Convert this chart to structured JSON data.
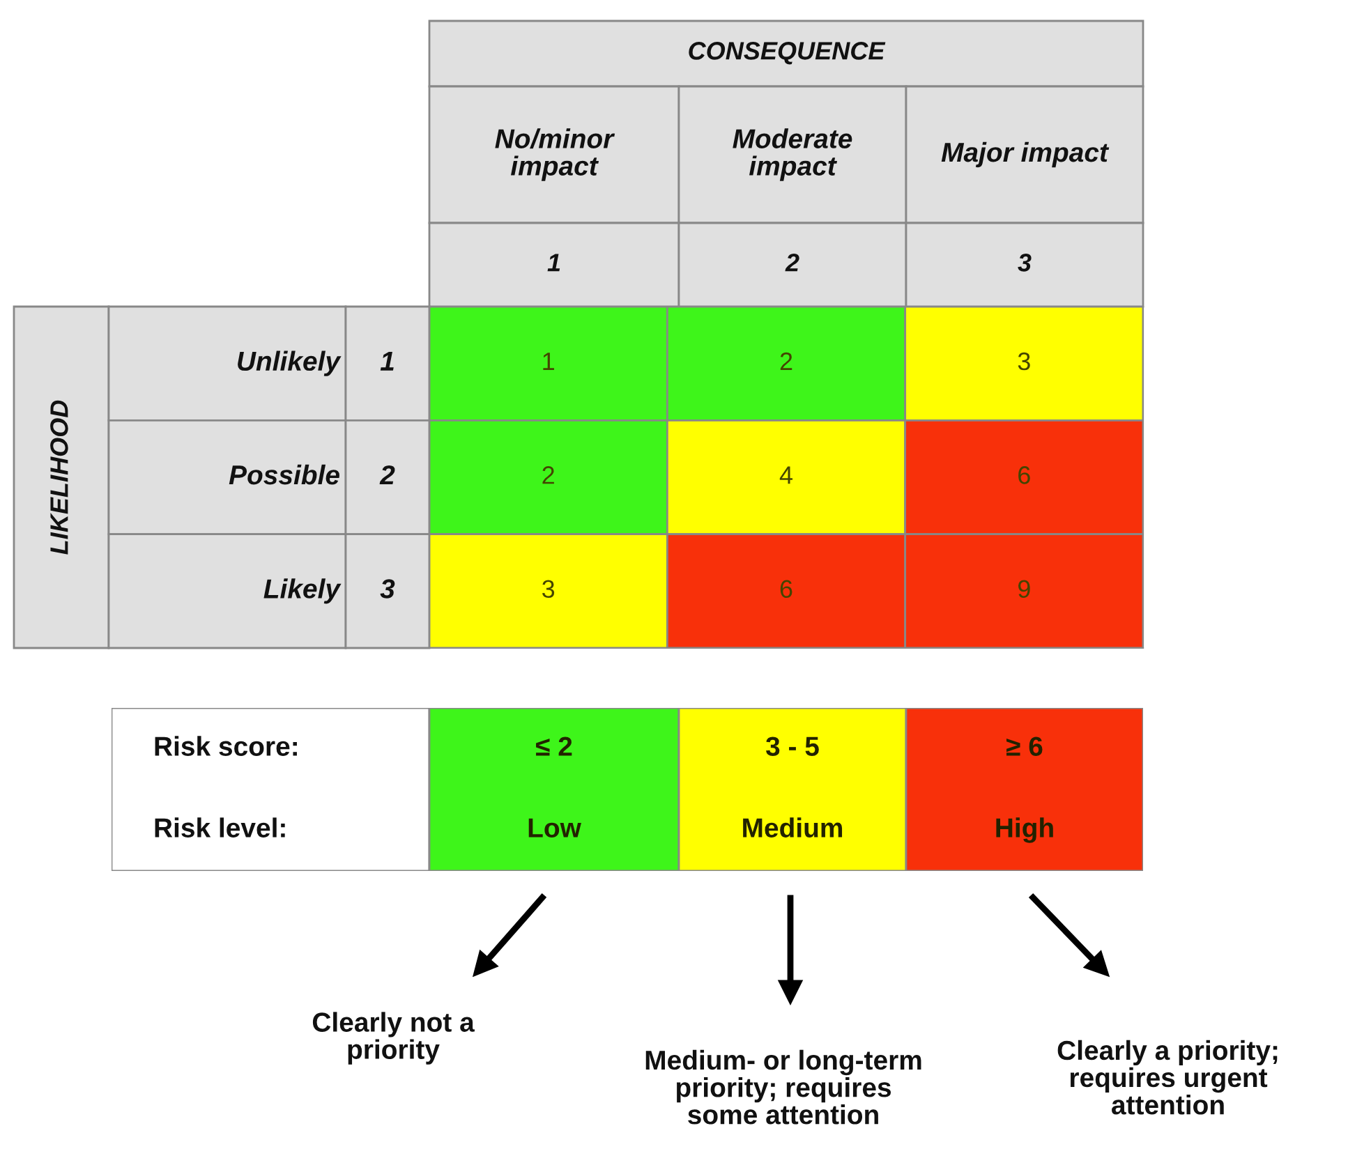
{
  "chart_data": [
    {
      "type": "heatmap",
      "xlabel": "CONSEQUENCE",
      "ylabel": "LIKELIHOOD",
      "categories": [
        "No/minor impact",
        "Moderate impact",
        "Major impact"
      ],
      "y_categories": [
        "Unlikely",
        "Possible",
        "Likely"
      ],
      "y2_categories": [
        "1",
        "2",
        "3"
      ],
      "cells": [
        [
          1,
          2,
          3
        ],
        [
          2,
          4,
          6
        ],
        [
          3,
          6,
          9
        ]
      ],
      "colors": [
        "#3ef51a",
        "#3ef51a",
        "#ffff00",
        "#3ef51a",
        "#ffff00",
        "#f8300a",
        "#ffff00",
        "#f8300a",
        "#f8300a"
      ],
      "data_labels": true,
      "annotations": [
        "1",
        "2",
        "3"
      ]
    },
    {
      "type": "other",
      "y_categories": [
        "Risk score:",
        "Risk level:"
      ],
      "cell_labels": [
        [
          "≤ 2",
          "3 - 5",
          "≥ 6"
        ],
        [
          "Low",
          "Medium",
          "High"
        ]
      ],
      "colors": [
        "#3ef51a",
        "#ffff00",
        "#f8300a"
      ],
      "annotations": [
        "Clearly not a\npriority",
        "Medium- or long-term\npriority; requires\nsome attention",
        "Clearly a priority;\nrequires urgent\nattention"
      ]
    }
  ]
}
